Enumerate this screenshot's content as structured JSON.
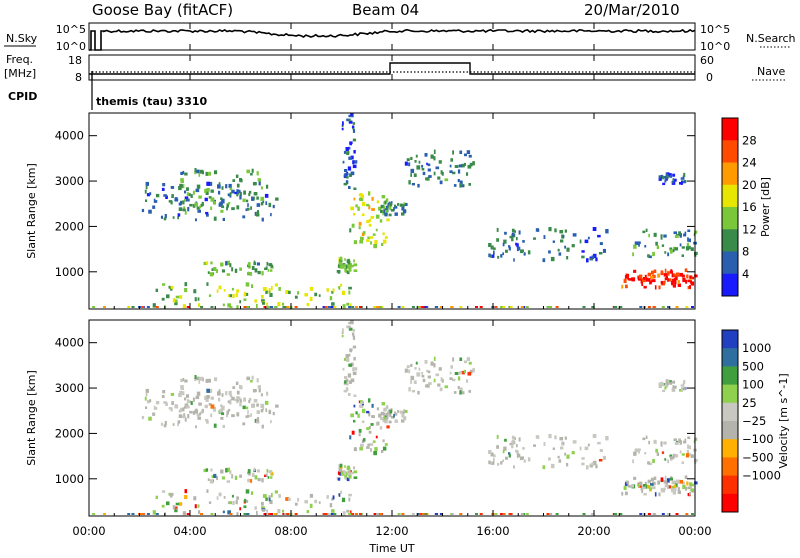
{
  "header": {
    "station": "Goose Bay (fitACF)",
    "beam": "Beam 04",
    "date": "20/Mar/2010"
  },
  "top_panels": {
    "nsky_label": "N.Sky",
    "nsearch_label": "N.Search",
    "log_ticks": [
      "10^5",
      "10^0"
    ],
    "freq_label_1": "Freq.",
    "freq_label_2": "[MHz]",
    "freq_ticks": [
      "18",
      "8"
    ],
    "nave_label": "Nave",
    "nave_ticks": [
      "60",
      "0"
    ],
    "cpid_label": "CPID",
    "cpid_value": "themis (tau) 3310"
  },
  "colors": {
    "power": [
      "#1a1aff",
      "#2a5fb0",
      "#3a8a4a",
      "#7ac83a",
      "#e6e600",
      "#ff9a00",
      "#ff4a00",
      "#ff0000"
    ],
    "velocity": [
      "#2040c0",
      "#2f6fa0",
      "#3f9f3f",
      "#8fd04f",
      "#c8c8c0",
      "#b4b4ac",
      "#ffb000",
      "#ff7000",
      "#ff3000",
      "#ff0000"
    ]
  },
  "chart_data": [
    {
      "type": "heatmap",
      "ylabel": "Slant Range [km]",
      "colorbar_label": "Power [dB]",
      "colorbar_ticks": [
        "28",
        "24",
        "20",
        "16",
        "12",
        "8",
        "4"
      ],
      "y_ticks": [
        "4000",
        "3000",
        "2000",
        "1000"
      ],
      "ylim": [
        180,
        4500
      ],
      "color_range": [
        0,
        32
      ],
      "regions": [
        {
          "t": [
            2.0,
            7.5
          ],
          "r": [
            2100,
            2900
          ],
          "pow": 8
        },
        {
          "t": [
            3.5,
            7.0
          ],
          "r": [
            2300,
            3200
          ],
          "pow": 10
        },
        {
          "t": [
            4.5,
            7.2
          ],
          "r": [
            900,
            1200
          ],
          "pow": 12
        },
        {
          "t": [
            2.5,
            10.5
          ],
          "r": [
            180,
            700
          ],
          "pow": 14
        },
        {
          "t": [
            10.3,
            11.8
          ],
          "r": [
            1500,
            2700
          ],
          "pow": 16
        },
        {
          "t": [
            9.8,
            10.5
          ],
          "r": [
            950,
            1250
          ],
          "pow": 12
        },
        {
          "t": [
            10.0,
            10.5
          ],
          "r": [
            2800,
            4500
          ],
          "pow": 6
        },
        {
          "t": [
            12.5,
            15.2
          ],
          "r": [
            2800,
            3600
          ],
          "pow": 8
        },
        {
          "t": [
            11.5,
            12.5
          ],
          "r": [
            2200,
            2500
          ],
          "pow": 10
        },
        {
          "t": [
            15.8,
            20.5
          ],
          "r": [
            1200,
            1900
          ],
          "pow": 7
        },
        {
          "t": [
            21.0,
            24.0
          ],
          "r": [
            600,
            1000
          ],
          "pow": 28
        },
        {
          "t": [
            21.2,
            24.0
          ],
          "r": [
            700,
            900
          ],
          "pow": 31
        },
        {
          "t": [
            21.5,
            24.0
          ],
          "r": [
            1300,
            1900
          ],
          "pow": 10
        },
        {
          "t": [
            22.5,
            23.6
          ],
          "r": [
            2900,
            3100
          ],
          "pow": 6
        }
      ]
    },
    {
      "type": "heatmap",
      "ylabel": "Slant Range [km]",
      "colorbar_label": "Velocity [m s^-1]",
      "colorbar_ticks": [
        "1000",
        "500",
        "100",
        "25",
        "−25",
        "−100",
        "−500",
        "−1000"
      ],
      "y_ticks": [
        "4000",
        "3000",
        "2000",
        "1000"
      ],
      "ylim": [
        180,
        4500
      ],
      "color_range": [
        -1250,
        1250
      ]
    }
  ],
  "time_axis": {
    "xlabel": "Time UT",
    "ticks": [
      "00:00",
      "04:00",
      "08:00",
      "12:00",
      "16:00",
      "20:00",
      "00:00"
    ],
    "xlim": [
      0,
      24
    ]
  }
}
